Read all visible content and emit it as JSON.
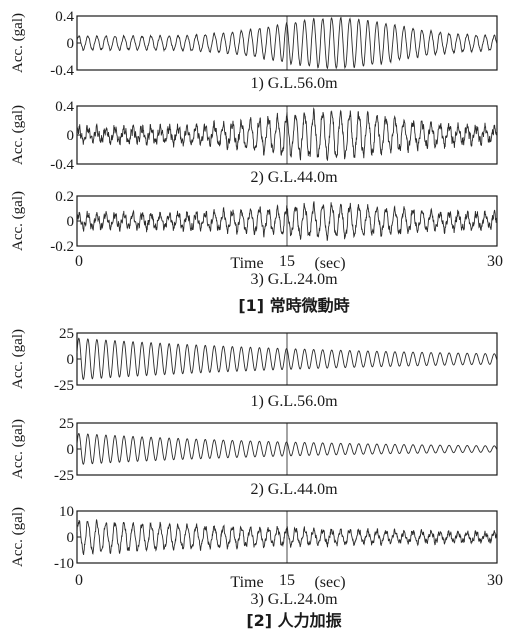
{
  "chart_data": [
    {
      "type": "line",
      "group": "[1] 常時微動時",
      "caption": "1) G.L.56.0m",
      "ylabel": "Acc. (gal)",
      "yticks": [
        "0.4",
        "0",
        "-0.4"
      ],
      "ytick_values": [
        0.4,
        0,
        -0.4
      ],
      "ylim": [
        -0.4,
        0.4
      ],
      "xlim": [
        0,
        30
      ],
      "x_midline": 15,
      "signal": {
        "kind": "modulated",
        "freq_hz": 1.55,
        "base_amp": 0.1,
        "burst_amp": 0.37,
        "burst_center_s": 18.5,
        "burst_width_s": 6.0,
        "noise_amp": 0.015
      }
    },
    {
      "type": "line",
      "group": "[1] 常時微動時",
      "caption": "2) G.L.44.0m",
      "ylabel": "Acc. (gal)",
      "yticks": [
        "0.4",
        "0",
        "-0.4"
      ],
      "ytick_values": [
        0.4,
        0,
        -0.4
      ],
      "ylim": [
        -0.4,
        0.4
      ],
      "xlim": [
        0,
        30
      ],
      "x_midline": 15,
      "signal": {
        "kind": "modulated",
        "freq_hz": 1.55,
        "base_amp": 0.08,
        "burst_amp": 0.3,
        "burst_center_s": 18.0,
        "burst_width_s": 6.5,
        "noise_amp": 0.07
      }
    },
    {
      "type": "line",
      "group": "[1] 常時微動時",
      "caption": "3) G.L.24.0m",
      "ylabel": "Acc. (gal)",
      "yticks": [
        "0.2",
        "0",
        "-0.2"
      ],
      "ytick_values": [
        0.2,
        0,
        -0.2
      ],
      "ylim": [
        -0.2,
        0.2
      ],
      "xlim": [
        0,
        30
      ],
      "x_midline": 15,
      "xticks": [
        "0",
        "15",
        "30"
      ],
      "xtick_values": [
        0,
        15,
        30
      ],
      "xlabel": "Time",
      "xunit": "(sec)",
      "signal": {
        "kind": "modulated",
        "freq_hz": 1.55,
        "base_amp": 0.05,
        "burst_amp": 0.12,
        "burst_center_s": 18.0,
        "burst_width_s": 6.5,
        "noise_amp": 0.035
      }
    },
    {
      "type": "line",
      "group": "[2] 人力加振",
      "caption": "1) G.L.56.0m",
      "ylabel": "Acc. (gal)",
      "yticks": [
        "25",
        "0",
        "-25"
      ],
      "ytick_values": [
        25,
        0,
        -25
      ],
      "ylim": [
        -25,
        25
      ],
      "xlim": [
        0,
        30
      ],
      "x_midline": 15,
      "signal": {
        "kind": "decay",
        "freq_hz": 1.55,
        "amp0": 20,
        "amp_end": 5,
        "noise_amp": 0
      }
    },
    {
      "type": "line",
      "group": "[2] 人力加振",
      "caption": "2) G.L.44.0m",
      "ylabel": "Acc. (gal)",
      "yticks": [
        "25",
        "0",
        "-25"
      ],
      "ytick_values": [
        25,
        0,
        -25
      ],
      "ylim": [
        -25,
        25
      ],
      "xlim": [
        0,
        30
      ],
      "x_midline": 15,
      "signal": {
        "kind": "decay",
        "freq_hz": 1.55,
        "amp0": 15,
        "amp_end": 3,
        "noise_amp": 0
      }
    },
    {
      "type": "line",
      "group": "[2] 人力加振",
      "caption": "3) G.L.24.0m",
      "ylabel": "Acc. (gal)",
      "yticks": [
        "10",
        "0",
        "-10"
      ],
      "ytick_values": [
        10,
        0,
        -10
      ],
      "ylim": [
        -10,
        10
      ],
      "xlim": [
        0,
        30
      ],
      "x_midline": 15,
      "xticks": [
        "0",
        "15",
        "30"
      ],
      "xtick_values": [
        0,
        15,
        30
      ],
      "xlabel": "Time",
      "xunit": "(sec)",
      "signal": {
        "kind": "decay",
        "freq_hz": 1.55,
        "amp0": 6,
        "amp_end": 1.5,
        "noise_amp": 1.2
      }
    }
  ],
  "captions": {
    "group1": "[1] 常時微動時",
    "group2": "[2] 人力加振"
  },
  "colors": {
    "trace": "#2a2a2a",
    "axis": "#1a1a1a",
    "background": "#ffffff"
  }
}
